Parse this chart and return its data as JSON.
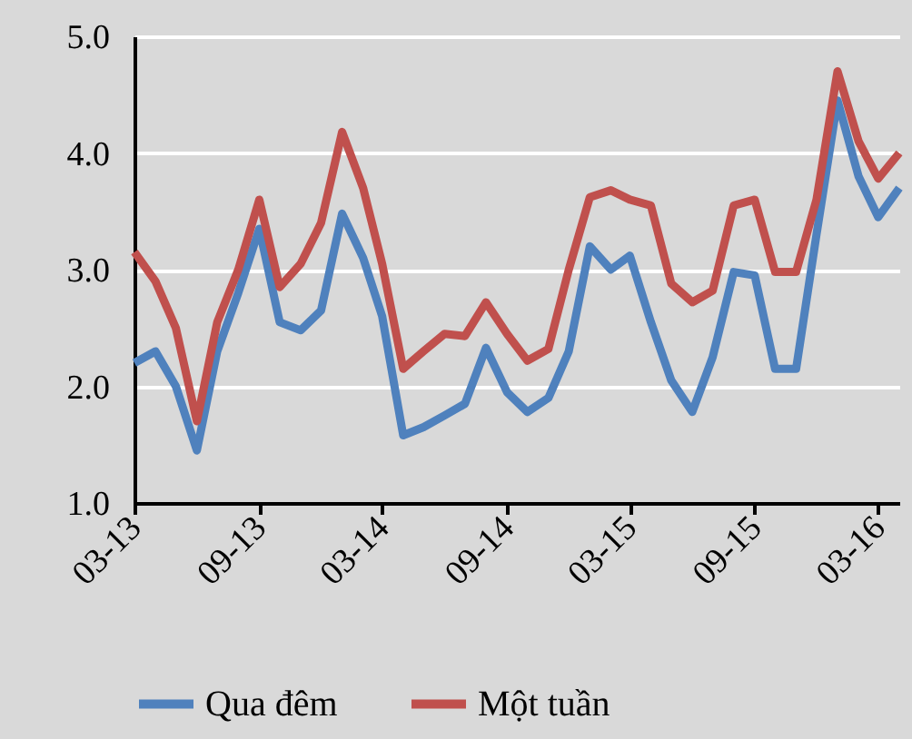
{
  "chart_data": {
    "type": "line",
    "x": [
      "2013-03",
      "2013-04",
      "2013-05",
      "2013-06",
      "2013-07",
      "2013-08",
      "2013-09",
      "2013-10",
      "2013-11",
      "2013-12",
      "2014-01",
      "2014-02",
      "2014-03",
      "2014-04",
      "2014-05",
      "2014-06",
      "2014-07",
      "2014-08",
      "2014-09",
      "2014-10",
      "2014-11",
      "2014-12",
      "2015-01",
      "2015-02",
      "2015-03",
      "2015-04",
      "2015-05",
      "2015-06",
      "2015-07",
      "2015-08",
      "2015-09",
      "2015-10",
      "2015-11",
      "2015-12",
      "2016-01",
      "2016-02",
      "2016-03",
      "2016-04"
    ],
    "series": [
      {
        "name": "Qua đêm",
        "color": "#4f81bd",
        "values": [
          2.2,
          2.3,
          2.0,
          1.45,
          2.3,
          2.8,
          3.35,
          2.55,
          2.48,
          2.65,
          3.48,
          3.1,
          2.6,
          1.58,
          1.65,
          1.75,
          1.85,
          2.33,
          1.95,
          1.78,
          1.9,
          2.3,
          3.2,
          3.0,
          3.12,
          2.55,
          2.05,
          1.78,
          2.25,
          2.98,
          2.95,
          2.15,
          2.15,
          3.3,
          4.45,
          3.8,
          3.45,
          3.7
        ]
      },
      {
        "name": "Một tuần",
        "color": "#c0504d",
        "values": [
          3.15,
          2.9,
          2.5,
          1.7,
          2.55,
          3.0,
          3.6,
          2.85,
          3.05,
          3.4,
          4.18,
          3.7,
          3.05,
          2.15,
          2.3,
          2.45,
          2.43,
          2.72,
          2.45,
          2.22,
          2.32,
          3.0,
          3.62,
          3.68,
          3.6,
          3.55,
          2.88,
          2.72,
          2.82,
          3.55,
          3.6,
          2.98,
          2.98,
          3.6,
          4.7,
          4.1,
          3.78,
          4.0
        ]
      }
    ],
    "xlim": [
      "2013-03",
      "2016-04"
    ],
    "xticks": [
      {
        "value": "2013-03",
        "label": "03-13"
      },
      {
        "value": "2013-09",
        "label": "09-13"
      },
      {
        "value": "2014-03",
        "label": "03-14"
      },
      {
        "value": "2014-09",
        "label": "09-14"
      },
      {
        "value": "2015-03",
        "label": "03-15"
      },
      {
        "value": "2015-09",
        "label": "09-15"
      },
      {
        "value": "2016-03",
        "label": "03-16"
      }
    ],
    "ylim": [
      1,
      5
    ],
    "yticks": [
      {
        "value": 1,
        "label": "1.0"
      },
      {
        "value": 2,
        "label": "2.0"
      },
      {
        "value": 3,
        "label": "3.0"
      },
      {
        "value": 4,
        "label": "4.0"
      },
      {
        "value": 5,
        "label": "5.0"
      }
    ],
    "grid": "y",
    "legend": "bottom",
    "marker": "none",
    "line_style": "solid"
  }
}
